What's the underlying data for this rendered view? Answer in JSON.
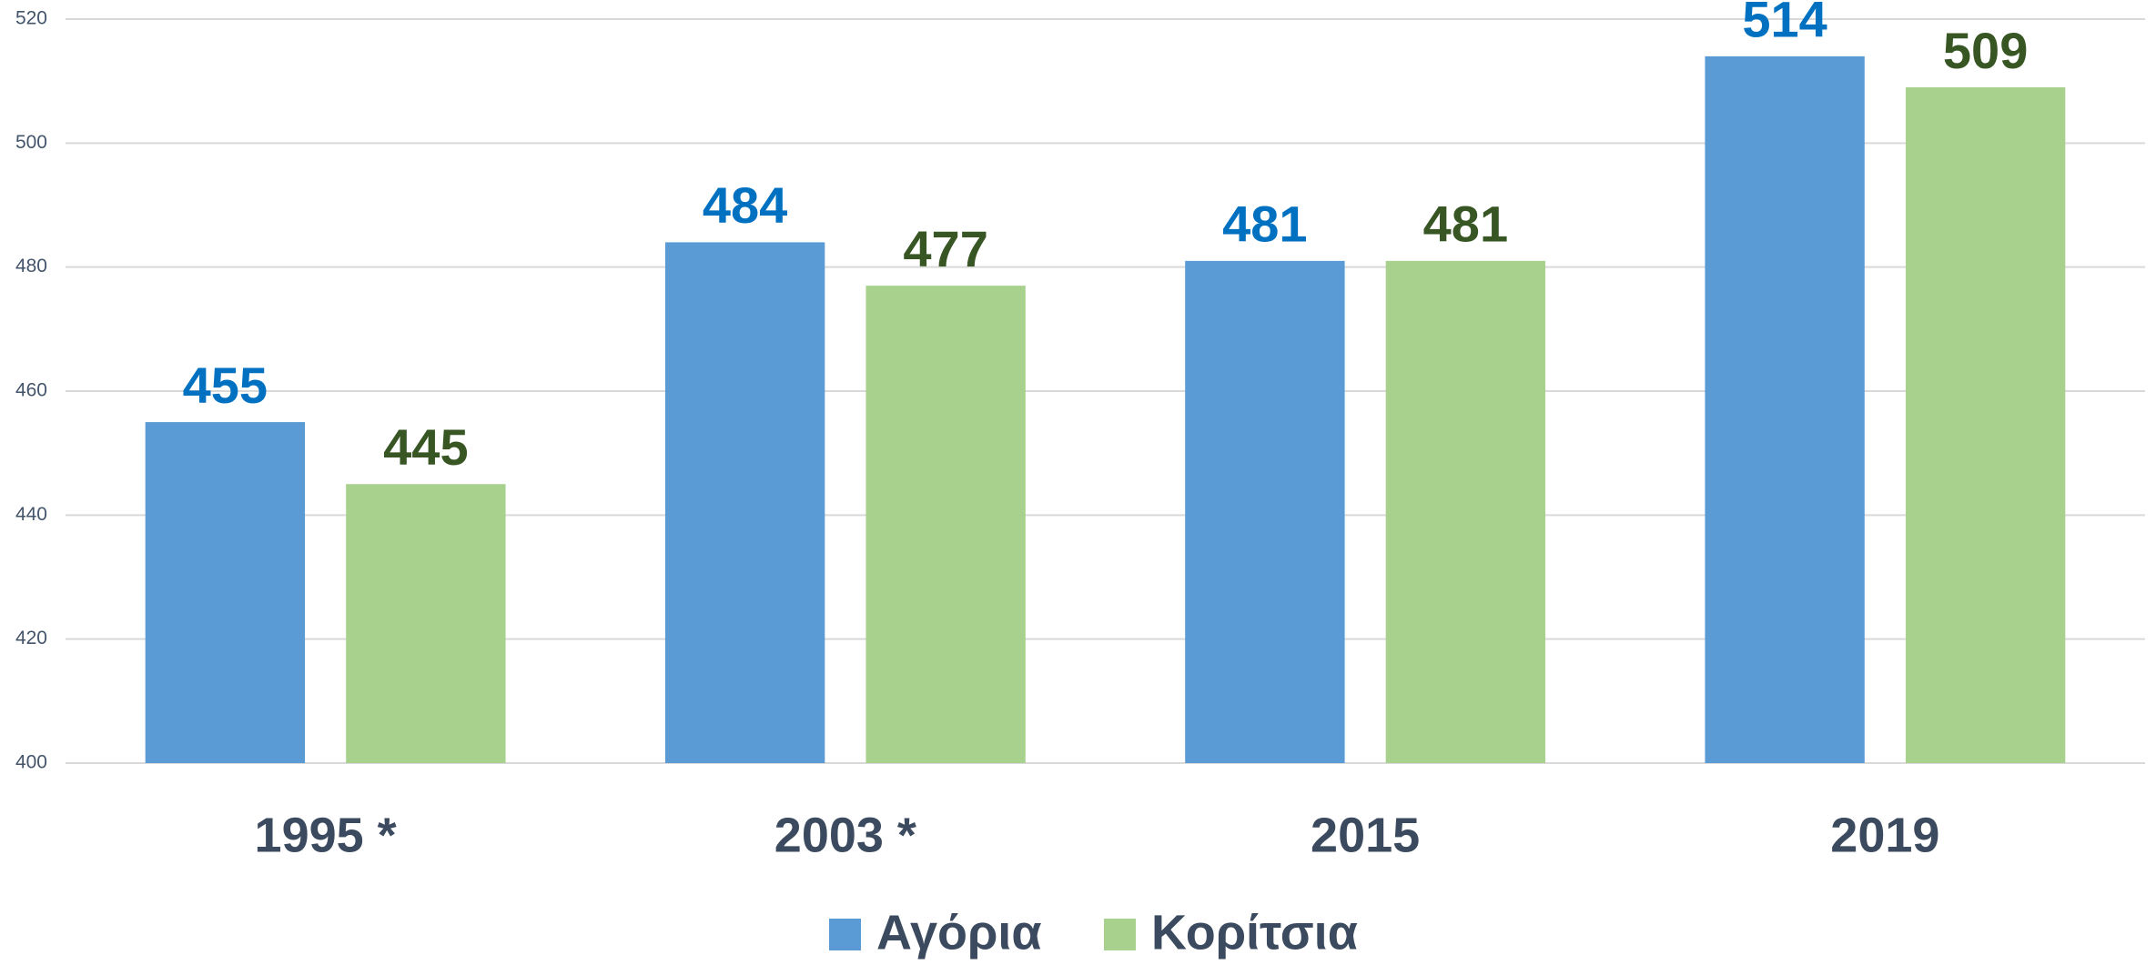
{
  "chart_data": {
    "type": "bar",
    "categories": [
      "1995 *",
      "2003 *",
      "2015",
      "2019"
    ],
    "series": [
      {
        "name": "Αγόρια",
        "color": "#5b9bd5",
        "label_color": "#0070c0",
        "values": [
          455,
          484,
          481,
          514
        ]
      },
      {
        "name": "Κορίτσια",
        "color": "#a9d18e",
        "label_color": "#375623",
        "values": [
          445,
          477,
          481,
          509
        ]
      }
    ],
    "ylim": [
      400,
      520
    ],
    "yticks": [
      400,
      420,
      440,
      460,
      480,
      500,
      520
    ],
    "grid": true,
    "legend": "bottom"
  }
}
